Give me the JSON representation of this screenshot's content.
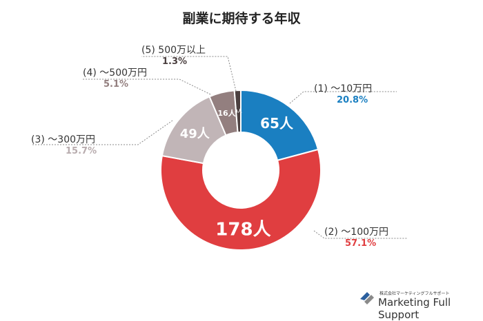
{
  "chart_data": {
    "type": "pie",
    "title": "副業に期待する年収",
    "unit": "人",
    "slices": [
      {
        "label": "(1) ～10万円",
        "value": 65,
        "percent": "20.8%",
        "color": "#1a7fc1",
        "pct_color": "#1a7fc1"
      },
      {
        "label": "(2) ～100万円",
        "value": 178,
        "percent": "57.1%",
        "color": "#e03e40",
        "pct_color": "#e03e40"
      },
      {
        "label": "(3) ～300万円",
        "value": 49,
        "percent": "15.7%",
        "color": "#c1b5b7",
        "pct_color": "#b8acae"
      },
      {
        "label": "(4) ～500万円",
        "value": 16,
        "percent": "5.1%",
        "color": "#937f7f",
        "pct_color": "#937f7f"
      },
      {
        "label": "(5) 500万以上",
        "value": 4,
        "percent": "1.3%",
        "color": "#4b4040",
        "pct_color": "#4b4040"
      }
    ]
  },
  "logo": {
    "sub": "株式会社マーケティングフルサポート",
    "main": "Marketing Full Support"
  }
}
